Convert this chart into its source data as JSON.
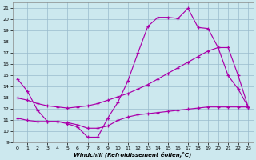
{
  "bg_color": "#cce8ee",
  "line_color": "#aa00aa",
  "grid_color": "#99bbcc",
  "xlabel": "Windchill (Refroidissement éolien,°C)",
  "xlim": [
    -0.5,
    23.5
  ],
  "ylim": [
    9,
    21.5
  ],
  "xticks": [
    0,
    1,
    2,
    3,
    4,
    5,
    6,
    7,
    8,
    9,
    10,
    11,
    12,
    13,
    14,
    15,
    16,
    17,
    18,
    19,
    20,
    21,
    22,
    23
  ],
  "yticks": [
    9,
    10,
    11,
    12,
    13,
    14,
    15,
    16,
    17,
    18,
    19,
    20,
    21
  ],
  "c1x": [
    0,
    1,
    2,
    3,
    4,
    5,
    6,
    7,
    8,
    9,
    10,
    11,
    12,
    13,
    14,
    15,
    16,
    17,
    18,
    19,
    20,
    21,
    22,
    23
  ],
  "c1y": [
    14.7,
    13.6,
    11.9,
    10.9,
    10.9,
    10.7,
    10.4,
    9.5,
    9.5,
    11.2,
    12.6,
    14.5,
    17.0,
    19.4,
    20.2,
    20.2,
    20.1,
    21.0,
    19.3,
    19.2,
    17.5,
    15.0,
    13.8,
    12.2
  ],
  "c2x": [
    0,
    1,
    2,
    3,
    4,
    5,
    6,
    7,
    8,
    9,
    10,
    11,
    12,
    13,
    14,
    15,
    16,
    17,
    18,
    19,
    20,
    21,
    22,
    23
  ],
  "c2y": [
    13.0,
    12.8,
    12.5,
    12.3,
    12.2,
    12.1,
    12.2,
    12.3,
    12.5,
    12.8,
    13.1,
    13.4,
    13.8,
    14.2,
    14.7,
    15.2,
    15.7,
    16.2,
    16.7,
    17.2,
    17.5,
    17.5,
    15.0,
    12.2
  ],
  "c3x": [
    0,
    1,
    2,
    3,
    4,
    5,
    6,
    7,
    8,
    9,
    10,
    11,
    12,
    13,
    14,
    15,
    16,
    17,
    18,
    19,
    20,
    21,
    22,
    23
  ],
  "c3y": [
    11.2,
    11.0,
    10.9,
    10.9,
    10.9,
    10.8,
    10.6,
    10.3,
    10.3,
    10.5,
    11.0,
    11.3,
    11.5,
    11.6,
    11.7,
    11.8,
    11.9,
    12.0,
    12.1,
    12.2,
    12.2,
    12.2,
    12.2,
    12.2
  ]
}
